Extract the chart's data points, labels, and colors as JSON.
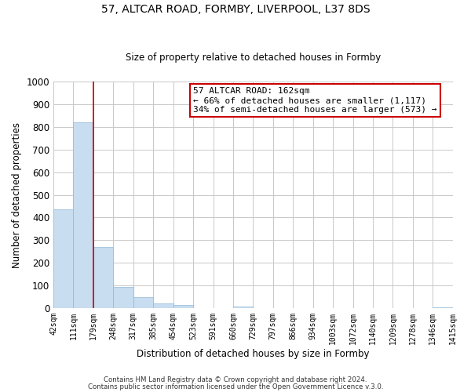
{
  "title_line1": "57, ALTCAR ROAD, FORMBY, LIVERPOOL, L37 8DS",
  "title_line2": "Size of property relative to detached houses in Formby",
  "xlabel": "Distribution of detached houses by size in Formby",
  "ylabel": "Number of detached properties",
  "bar_values": [
    435,
    820,
    270,
    93,
    48,
    22,
    12,
    0,
    0,
    7,
    0,
    0,
    0,
    0,
    0,
    0,
    0,
    0,
    0,
    5
  ],
  "bar_labels": [
    "42sqm",
    "111sqm",
    "179sqm",
    "248sqm",
    "317sqm",
    "385sqm",
    "454sqm",
    "523sqm",
    "591sqm",
    "660sqm",
    "729sqm",
    "797sqm",
    "866sqm",
    "934sqm",
    "1003sqm",
    "1072sqm",
    "1140sqm",
    "1209sqm",
    "1278sqm",
    "1346sqm",
    "1415sqm"
  ],
  "bar_color": "#c8ddf0",
  "bar_edge_color": "#90b8d8",
  "red_line_x": 2.0,
  "annotation_title": "57 ALTCAR ROAD: 162sqm",
  "annotation_line1": "← 66% of detached houses are smaller (1,117)",
  "annotation_line2": "34% of semi-detached houses are larger (573) →",
  "annotation_box_color": "#ffffff",
  "annotation_box_edge_color": "#cc0000",
  "red_line_color": "#cc0000",
  "ylim": [
    0,
    1000
  ],
  "yticks": [
    0,
    100,
    200,
    300,
    400,
    500,
    600,
    700,
    800,
    900,
    1000
  ],
  "footer_line1": "Contains HM Land Registry data © Crown copyright and database right 2024.",
  "footer_line2": "Contains public sector information licensed under the Open Government Licence v.3.0.",
  "bg_color": "#ffffff",
  "grid_color": "#c8c8c8"
}
